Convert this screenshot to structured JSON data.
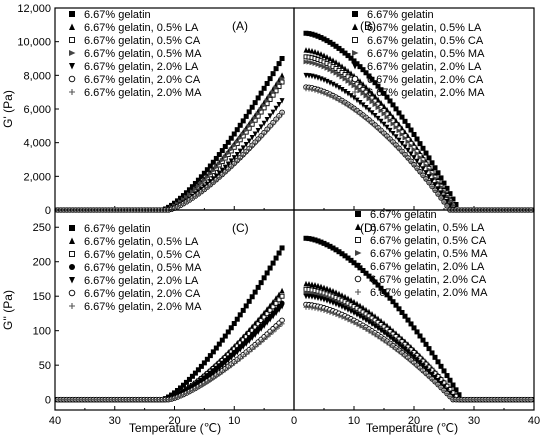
{
  "chart_data": [
    {
      "type": "scatter",
      "panel_label": "(A)",
      "ylabel": "G' (Pa)",
      "xlabel": "",
      "xlim": [
        40,
        0
      ],
      "ylim": [
        0,
        12000
      ],
      "yticks": [
        "0",
        "2,000",
        "4,000",
        "6,000",
        "8,000",
        "10,000",
        "12,000"
      ],
      "xticks": [],
      "legend_position": "top-left",
      "series": [
        {
          "name": "6.67% gelatin",
          "marker": "square-filled",
          "onset": 22,
          "end": 2,
          "end_value": 9000,
          "shape": "cooling"
        },
        {
          "name": "6.67% gelatin, 0.5% LA",
          "marker": "triangle-up-filled",
          "onset": 21.5,
          "end": 2,
          "end_value": 8000,
          "shape": "cooling"
        },
        {
          "name": "6.67% gelatin, 0.5% CA",
          "marker": "square-open",
          "onset": 21.5,
          "end": 2,
          "end_value": 7600,
          "shape": "cooling"
        },
        {
          "name": "6.67% gelatin, 0.5% MA",
          "marker": "triangle-right-filled",
          "onset": 21.5,
          "end": 2,
          "end_value": 7800,
          "shape": "cooling"
        },
        {
          "name": "6.67% gelatin, 2.0% LA",
          "marker": "triangle-down-filled",
          "onset": 21,
          "end": 2,
          "end_value": 6500,
          "shape": "cooling"
        },
        {
          "name": "6.67% gelatin, 2.0% CA",
          "marker": "circle-open",
          "onset": 21,
          "end": 2,
          "end_value": 5800,
          "shape": "cooling"
        },
        {
          "name": "6.67% gelatin, 2.0% MA",
          "marker": "plus",
          "onset": 21,
          "end": 2,
          "end_value": 5700,
          "shape": "cooling"
        }
      ]
    },
    {
      "type": "scatter",
      "panel_label": "(B)",
      "ylabel": "",
      "xlabel": "",
      "xlim": [
        0,
        40
      ],
      "ylim": [
        0,
        12000
      ],
      "yticks": [],
      "xticks": [],
      "legend_position": "top-right",
      "series": [
        {
          "name": "6.67% gelatin",
          "marker": "square-filled",
          "start": 2,
          "start_value": 10500,
          "end": 27.5,
          "shape": "heating"
        },
        {
          "name": "6.67% gelatin, 0.5% LA",
          "marker": "triangle-up-filled",
          "start": 2,
          "start_value": 9500,
          "end": 27,
          "shape": "heating"
        },
        {
          "name": "6.67% gelatin, 0.5% CA",
          "marker": "square-open",
          "start": 2,
          "start_value": 9100,
          "end": 27,
          "shape": "heating"
        },
        {
          "name": "6.67% gelatin, 0.5% MA",
          "marker": "triangle-right-filled",
          "start": 2,
          "start_value": 8800,
          "end": 27,
          "shape": "heating"
        },
        {
          "name": "6.67% gelatin, 2.0% LA",
          "marker": "triangle-down-filled",
          "start": 2,
          "start_value": 8000,
          "end": 26.5,
          "shape": "heating"
        },
        {
          "name": "6.67% gelatin, 2.0% CA",
          "marker": "circle-open",
          "start": 2,
          "start_value": 7300,
          "end": 26,
          "shape": "heating"
        },
        {
          "name": "6.67% gelatin, 2.0% MA",
          "marker": "plus",
          "start": 2,
          "start_value": 7200,
          "end": 26,
          "shape": "heating"
        }
      ]
    },
    {
      "type": "scatter",
      "panel_label": "(C)",
      "ylabel": "G'' (Pa)",
      "xlabel": "Temperature (℃)",
      "xlim": [
        40,
        0
      ],
      "ylim": [
        -15,
        275
      ],
      "yticks": [
        "0",
        "50",
        "100",
        "150",
        "200",
        "250"
      ],
      "xticks": [
        "40",
        "30",
        "20",
        "10",
        "0"
      ],
      "legend_position": "top-left",
      "series": [
        {
          "name": "6.67% gelatin",
          "marker": "square-filled",
          "onset": 22,
          "end": 2,
          "end_value": 220,
          "shape": "cooling"
        },
        {
          "name": "6.67% gelatin, 0.5% LA",
          "marker": "triangle-up-filled",
          "onset": 21.5,
          "end": 2,
          "end_value": 158,
          "shape": "cooling"
        },
        {
          "name": "6.67% gelatin, 0.5% CA",
          "marker": "square-open",
          "onset": 21.5,
          "end": 2,
          "end_value": 150,
          "shape": "cooling"
        },
        {
          "name": "6.67% gelatin, 0.5% MA",
          "marker": "circle-filled",
          "onset": 21.5,
          "end": 2,
          "end_value": 140,
          "shape": "cooling"
        },
        {
          "name": "6.67% gelatin, 2.0% LA",
          "marker": "triangle-down-filled",
          "onset": 21,
          "end": 2,
          "end_value": 135,
          "shape": "cooling"
        },
        {
          "name": "6.67% gelatin, 2.0% CA",
          "marker": "circle-open",
          "onset": 21,
          "end": 2,
          "end_value": 115,
          "shape": "cooling"
        },
        {
          "name": "6.67% gelatin, 2.0% MA",
          "marker": "plus",
          "onset": 21,
          "end": 2,
          "end_value": 110,
          "shape": "cooling"
        }
      ]
    },
    {
      "type": "scatter",
      "panel_label": "(D)",
      "ylabel": "",
      "xlabel": "Temperature (℃)",
      "xlim": [
        0,
        40
      ],
      "ylim": [
        -15,
        275
      ],
      "yticks": [],
      "xticks": [
        "10",
        "20",
        "30",
        "40"
      ],
      "legend_position": "top-right",
      "series": [
        {
          "name": "6.67% gelatin",
          "marker": "square-filled",
          "start": 2,
          "start_value": 234,
          "end": 28,
          "shape": "heating"
        },
        {
          "name": "6.67% gelatin, 0.5% LA",
          "marker": "triangle-up-filled",
          "start": 2,
          "start_value": 168,
          "end": 27.5,
          "shape": "heating"
        },
        {
          "name": "6.67% gelatin, 0.5% CA",
          "marker": "square-open",
          "start": 2,
          "start_value": 160,
          "end": 27.5,
          "shape": "heating"
        },
        {
          "name": "6.67% gelatin, 0.5% MA",
          "marker": "triangle-right-filled",
          "start": 2,
          "start_value": 155,
          "end": 27,
          "shape": "heating"
        },
        {
          "name": "6.67% gelatin, 2.0% LA",
          "marker": "triangle-down-filled",
          "start": 2,
          "start_value": 150,
          "end": 27,
          "shape": "heating"
        },
        {
          "name": "6.67% gelatin, 2.0% CA",
          "marker": "circle-open",
          "start": 2,
          "start_value": 138,
          "end": 26.5,
          "shape": "heating"
        },
        {
          "name": "6.67% gelatin, 2.0% MA",
          "marker": "plus",
          "start": 2,
          "start_value": 134,
          "end": 26.5,
          "shape": "heating"
        }
      ]
    }
  ]
}
